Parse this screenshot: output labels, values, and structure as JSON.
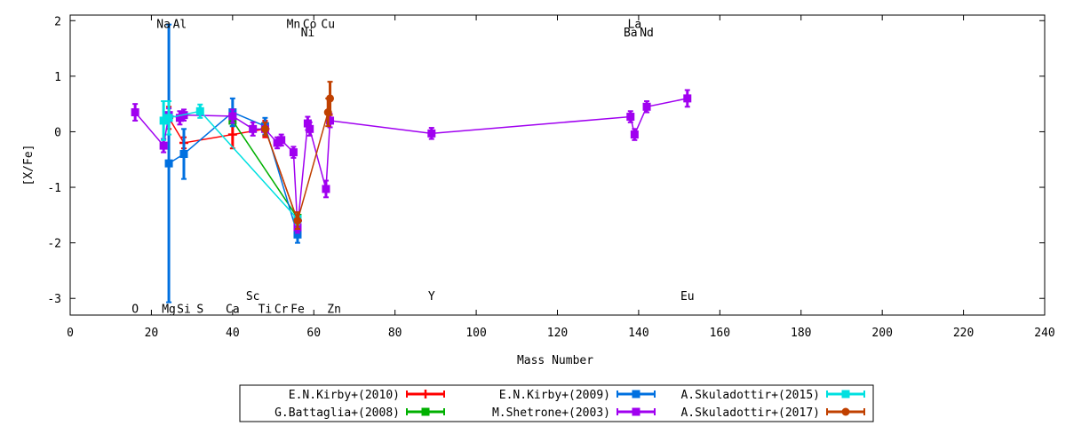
{
  "chart_data": {
    "type": "scatter",
    "title": "",
    "xlabel": "Mass Number",
    "ylabel": "[X/Fe]",
    "xlim": [
      0,
      240
    ],
    "ylim": [
      -3.3,
      2.1
    ],
    "xticks": [
      "0",
      "20",
      "40",
      "60",
      "80",
      "100",
      "120",
      "140",
      "160",
      "180",
      "200",
      "220",
      "240"
    ],
    "yticks": [
      "-3",
      "-2",
      "-1",
      "0",
      "1",
      "2"
    ],
    "grid": false,
    "legend_position": "bottom-center",
    "element_labels": [
      {
        "text": "Na",
        "x": 23,
        "y": 1.95
      },
      {
        "text": "Al",
        "x": 27,
        "y": 1.95
      },
      {
        "text": "Mn",
        "x": 55,
        "y": 1.95
      },
      {
        "text": "Co",
        "x": 59,
        "y": 1.95
      },
      {
        "text": "Cu",
        "x": 63.5,
        "y": 1.95
      },
      {
        "text": "Ni",
        "x": 58.5,
        "y": 1.8
      },
      {
        "text": "La",
        "x": 139,
        "y": 1.95
      },
      {
        "text": "Ba",
        "x": 138,
        "y": 1.8
      },
      {
        "text": "Nd",
        "x": 142,
        "y": 1.8
      },
      {
        "text": "Sc",
        "x": 45,
        "y": -2.95
      },
      {
        "text": "Y",
        "x": 89,
        "y": -2.95
      },
      {
        "text": "Eu",
        "x": 152,
        "y": -2.95
      },
      {
        "text": "O",
        "x": 16,
        "y": -3.18
      },
      {
        "text": "Mg",
        "x": 24.3,
        "y": -3.18
      },
      {
        "text": "Si",
        "x": 28,
        "y": -3.18
      },
      {
        "text": "S",
        "x": 32,
        "y": -3.18
      },
      {
        "text": "Ca",
        "x": 40,
        "y": -3.18
      },
      {
        "text": "Ti",
        "x": 48,
        "y": -3.18
      },
      {
        "text": "Cr",
        "x": 52,
        "y": -3.18
      },
      {
        "text": "Fe",
        "x": 56,
        "y": -3.18
      },
      {
        "text": "Zn",
        "x": 65,
        "y": -3.18
      }
    ],
    "series": [
      {
        "name": "E.N.Kirby+(2010)",
        "color": "#ff0000",
        "marker": "plus",
        "points": [
          {
            "x": 24.3,
            "y": 0.25,
            "err": 0.2
          },
          {
            "x": 28,
            "y": -0.2,
            "err": 0.1
          },
          {
            "x": 40,
            "y": -0.05,
            "err": 0.25
          },
          {
            "x": 48,
            "y": 0.05,
            "err": 0.15
          },
          {
            "x": 56,
            "y": -1.6,
            "err": 0.1
          }
        ]
      },
      {
        "name": "G.Battaglia+(2008)",
        "color": "#00b000",
        "marker": "square",
        "points": [
          {
            "x": 40,
            "y": 0.2,
            "err": 0.1
          },
          {
            "x": 56,
            "y": -1.55,
            "err": 0.1
          }
        ]
      },
      {
        "name": "E.N.Kirby+(2009)",
        "color": "#0070e0",
        "marker": "square",
        "points": [
          {
            "x": 24.3,
            "y": -0.57,
            "err": 2.5
          },
          {
            "x": 28,
            "y": -0.4,
            "err": 0.45
          },
          {
            "x": 40,
            "y": 0.35,
            "err": 0.25
          },
          {
            "x": 48,
            "y": 0.1,
            "err": 0.15
          },
          {
            "x": 56,
            "y": -1.85,
            "err": 0.15
          }
        ]
      },
      {
        "name": "M.Shetrone+(2003)",
        "color": "#a000f0",
        "marker": "square",
        "points": [
          {
            "x": 16,
            "y": 0.35,
            "err": 0.15
          },
          {
            "x": 23,
            "y": -0.25,
            "err": 0.12
          },
          {
            "x": 24.3,
            "y": 0.3,
            "err": 0.12
          },
          {
            "x": 27,
            "y": 0.25,
            "err": 0.12
          },
          {
            "x": 28,
            "y": 0.3,
            "err": 0.1
          },
          {
            "x": 40,
            "y": 0.28,
            "err": 0.12
          },
          {
            "x": 45,
            "y": 0.05,
            "err": 0.12
          },
          {
            "x": 48,
            "y": 0.05,
            "err": 0.12
          },
          {
            "x": 51,
            "y": -0.2,
            "err": 0.1
          },
          {
            "x": 52,
            "y": -0.15,
            "err": 0.1
          },
          {
            "x": 55,
            "y": -0.37,
            "err": 0.1
          },
          {
            "x": 56,
            "y": -1.72,
            "err": 0.1
          },
          {
            "x": 58.5,
            "y": 0.15,
            "err": 0.12
          },
          {
            "x": 59,
            "y": 0.05,
            "err": 0.12
          },
          {
            "x": 63,
            "y": -1.03,
            "err": 0.15
          },
          {
            "x": 64,
            "y": 0.2,
            "err": 0.12
          },
          {
            "x": 89,
            "y": -0.03,
            "err": 0.1
          },
          {
            "x": 138,
            "y": 0.27,
            "err": 0.1
          },
          {
            "x": 139,
            "y": -0.05,
            "err": 0.1
          },
          {
            "x": 142,
            "y": 0.45,
            "err": 0.1
          },
          {
            "x": 152,
            "y": 0.6,
            "err": 0.15
          }
        ]
      },
      {
        "name": "A.Skuladottir+(2015)",
        "color": "#00e0e0",
        "marker": "square",
        "points": [
          {
            "x": 23,
            "y": 0.2,
            "err": 0.35
          },
          {
            "x": 24.3,
            "y": 0.25,
            "err": 0.3
          },
          {
            "x": 32,
            "y": 0.37,
            "err": 0.12
          },
          {
            "x": 56,
            "y": -1.57,
            "err": 0.1
          }
        ]
      },
      {
        "name": "A.Skuladottir+(2017)",
        "color": "#c04000",
        "marker": "circle",
        "points": [
          {
            "x": 48,
            "y": 0.05,
            "err": 0.12
          },
          {
            "x": 56,
            "y": -1.6,
            "err": 0.15
          },
          {
            "x": 64,
            "y": 0.6,
            "err": 0.3
          },
          {
            "x": 63.5,
            "y": 0.35,
            "err": 0.25
          }
        ]
      }
    ]
  }
}
